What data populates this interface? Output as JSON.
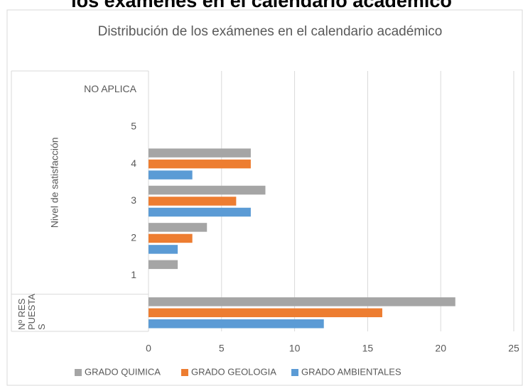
{
  "page_heading": "los exámenes en el calendario académico",
  "chart_data": {
    "type": "bar",
    "orientation": "horizontal",
    "title": "Distribución de los exámenes en el calendario académico",
    "categories": [
      "NO APLICA",
      "5",
      "4",
      "3",
      "2",
      "1",
      null
    ],
    "groups": [
      {
        "label": "Nivel de satisfacción",
        "count": 6
      },
      {
        "label": "Nº RESPUESTAS",
        "count": 1
      }
    ],
    "series": [
      {
        "name": "GRADO QUIMICA",
        "color": "#a5a5a5",
        "values": [
          0,
          0,
          7,
          8,
          4,
          2,
          21
        ]
      },
      {
        "name": "GRADO GEOLOGIA",
        "color": "#ed7d31",
        "values": [
          0,
          0,
          7,
          6,
          3,
          0,
          16
        ]
      },
      {
        "name": "GRADO AMBIENTALES",
        "color": "#5b9bd5",
        "values": [
          0,
          0,
          3,
          7,
          2,
          0,
          12
        ]
      }
    ],
    "xlim": [
      0,
      25
    ],
    "xticks": [
      0,
      5,
      10,
      15,
      20,
      25
    ],
    "grid": true,
    "legend": "bottom"
  }
}
